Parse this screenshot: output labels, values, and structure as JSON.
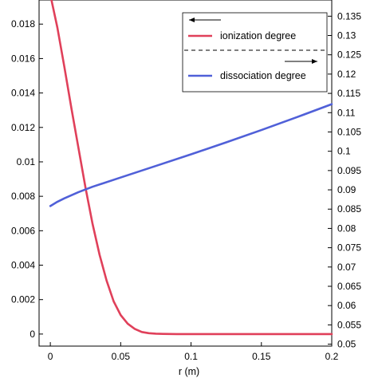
{
  "chart_data": {
    "type": "line",
    "xlabel": "r (m)",
    "ylabel": "",
    "y2label": "",
    "x": {
      "min": -0.008,
      "max": 0.2,
      "ticks": [
        0,
        0.05,
        0.1,
        0.15,
        0.2
      ],
      "tick_labels": [
        "0",
        "0.05",
        "0.1",
        "0.15",
        "0.2"
      ]
    },
    "y_left": {
      "min": -0.0007,
      "max": 0.0194,
      "ticks": [
        0,
        0.002,
        0.004,
        0.006,
        0.008,
        0.01,
        0.012,
        0.014,
        0.016,
        0.018
      ],
      "tick_labels": [
        "0",
        "0.002",
        "0.004",
        "0.006",
        "0.008",
        "0.01",
        "0.012",
        "0.014",
        "0.016",
        "0.018"
      ]
    },
    "y_right": {
      "min": 0.0495,
      "max": 0.1392,
      "ticks": [
        0.05,
        0.055,
        0.06,
        0.065,
        0.07,
        0.075,
        0.08,
        0.085,
        0.09,
        0.095,
        0.1,
        0.105,
        0.11,
        0.115,
        0.12,
        0.125,
        0.13,
        0.135
      ],
      "tick_labels": [
        "0.05",
        "0.055",
        "0.06",
        "0.065",
        "0.07",
        "0.075",
        "0.08",
        "0.085",
        "0.09",
        "0.095",
        "0.1",
        "0.105",
        "0.11",
        "0.115",
        "0.12",
        "0.125",
        "0.13",
        "0.135"
      ]
    },
    "grid": false,
    "legend": {
      "placement": "top-right",
      "entries": [
        "ionization degree",
        "dissociation degree"
      ]
    },
    "series": [
      {
        "name": "ionization degree",
        "axis": "left",
        "color": "#e0405a",
        "x": [
          0,
          0.005,
          0.01,
          0.015,
          0.02,
          0.025,
          0.03,
          0.035,
          0.04,
          0.045,
          0.05,
          0.055,
          0.06,
          0.065,
          0.07,
          0.075,
          0.08,
          0.09,
          0.1,
          0.12,
          0.15,
          0.2
        ],
        "y": [
          0.0197,
          0.0178,
          0.0155,
          0.0131,
          0.0108,
          0.0085,
          0.0064,
          0.0046,
          0.0031,
          0.0019,
          0.0011,
          0.0006,
          0.0003,
          0.00012,
          5e-05,
          2e-05,
          1e-05,
          0,
          0,
          0,
          0,
          0
        ]
      },
      {
        "name": "dissociation degree",
        "axis": "right",
        "color": "#5060d8",
        "x": [
          0,
          0.005,
          0.01,
          0.02,
          0.03,
          0.05,
          0.075,
          0.1,
          0.125,
          0.15,
          0.175,
          0.2
        ],
        "y": [
          0.0858,
          0.0869,
          0.0878,
          0.0894,
          0.0908,
          0.0932,
          0.0962,
          0.0992,
          0.1023,
          0.1055,
          0.1088,
          0.1122
        ]
      }
    ]
  }
}
